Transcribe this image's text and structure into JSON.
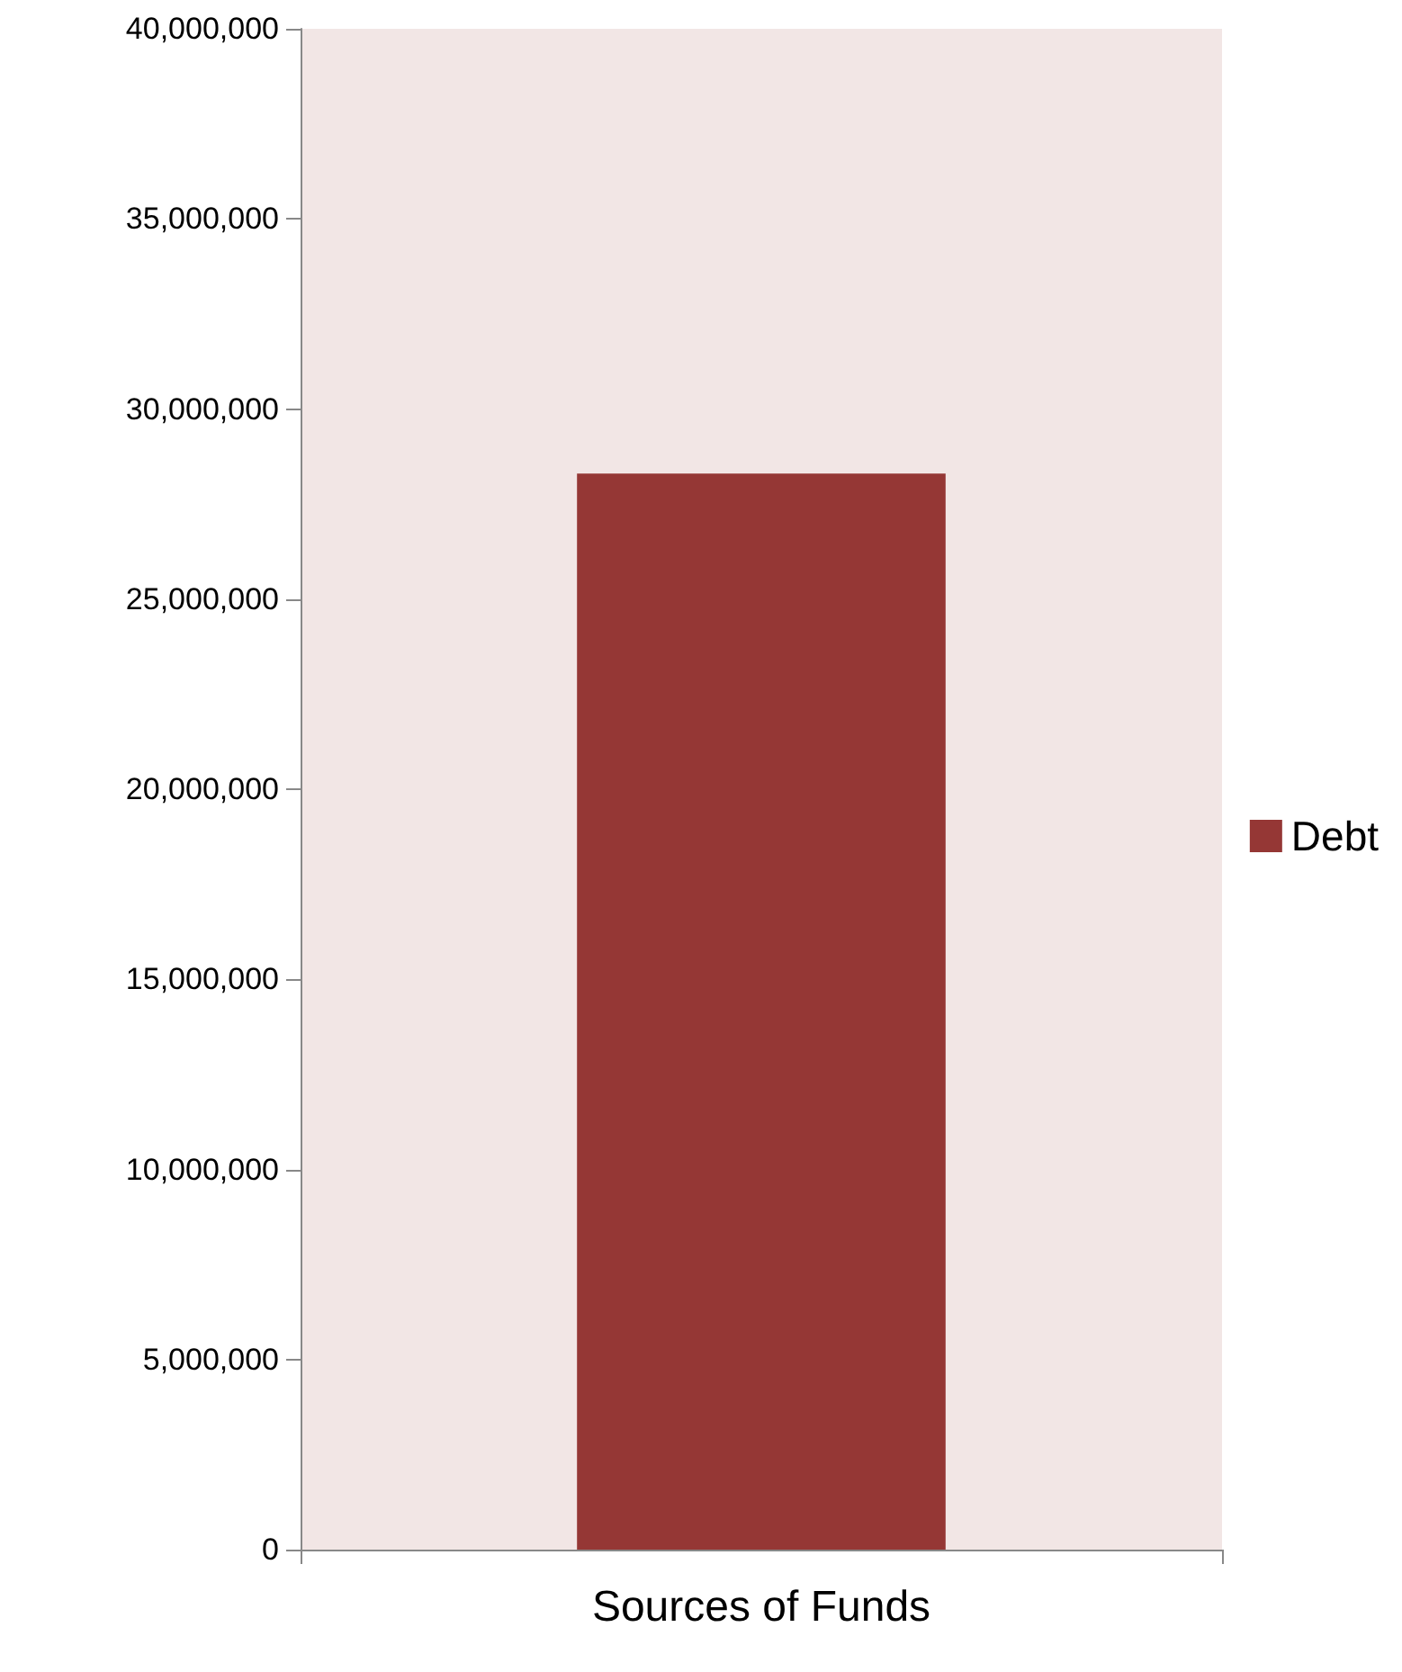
{
  "chart_data": {
    "type": "bar",
    "categories": [
      "Sources of Funds"
    ],
    "series": [
      {
        "name": "Debt",
        "color": "#953735",
        "values": [
          28300000
        ]
      }
    ],
    "ylim": [
      0,
      40000000
    ],
    "yticks": [
      0,
      {
        "value": 5000000,
        "label": "5,000,000"
      },
      {
        "value": 10000000,
        "label": "10,000,000"
      },
      {
        "value": 15000000,
        "label": "15,000,000"
      },
      {
        "value": 20000000,
        "label": "20,000,000"
      },
      {
        "value": 25000000,
        "label": "25,000,000"
      },
      {
        "value": 30000000,
        "label": "30,000,000"
      },
      {
        "value": 35000000,
        "label": "35,000,000"
      },
      {
        "value": 40000000,
        "label": "40,000,000"
      }
    ],
    "grid": false,
    "legend": "right"
  }
}
